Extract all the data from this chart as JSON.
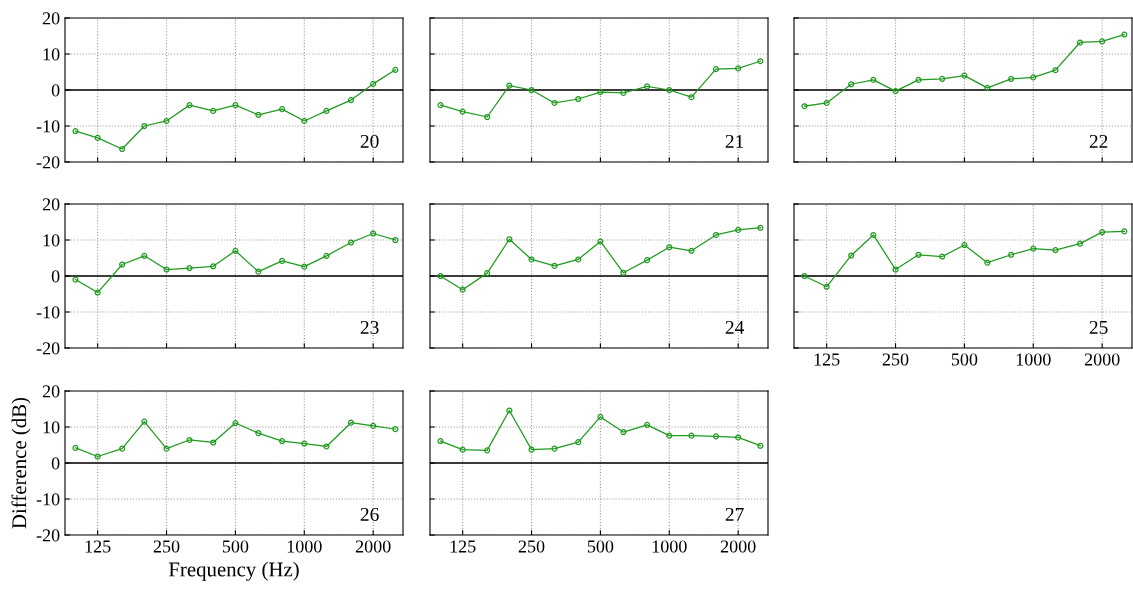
{
  "chart_data": [
    {
      "type": "line",
      "x": [
        100,
        125,
        160,
        200,
        250,
        315,
        400,
        500,
        630,
        800,
        1000,
        1250,
        1600,
        2000,
        2500
      ],
      "series": [
        {
          "color": "#1f9a1f",
          "values": [
            -11.4,
            -13.3,
            -16.4,
            -10,
            -8.6,
            -4.2,
            -5.8,
            -4.2,
            -6.9,
            -5.3,
            -8.6,
            -5.8,
            -2.8,
            1.7,
            5.6
          ]
        }
      ],
      "xlim": [
        90,
        2700
      ],
      "ylim": [
        -20,
        20
      ],
      "xticks": [
        125,
        250,
        500,
        1000,
        2000
      ],
      "yticks": [
        -20,
        -10,
        0,
        10,
        20
      ],
      "log": "x",
      "grid": true,
      "marker": "circle",
      "line_style": "solid",
      "ref_lines": [
        {
          "axis": "y",
          "value": 0,
          "color": "#000000"
        }
      ],
      "annotations": [
        "20"
      ],
      "tick_labels": "y"
    },
    {
      "type": "line",
      "x": [
        100,
        125,
        160,
        200,
        250,
        315,
        400,
        500,
        630,
        800,
        1000,
        1250,
        1600,
        2000,
        2500
      ],
      "series": [
        {
          "color": "#1f9a1f",
          "values": [
            -4.2,
            -6,
            -7.5,
            1.2,
            0,
            -3.6,
            -2.5,
            -0.6,
            -0.8,
            1,
            0,
            -2,
            5.8,
            6,
            8
          ]
        }
      ],
      "xlim": [
        90,
        2700
      ],
      "ylim": [
        -20,
        20
      ],
      "xticks": [
        125,
        250,
        500,
        1000,
        2000
      ],
      "yticks": [
        -20,
        -10,
        0,
        10,
        20
      ],
      "log": "x",
      "grid": true,
      "marker": "circle",
      "line_style": "solid",
      "ref_lines": [
        {
          "axis": "y",
          "value": 0,
          "color": "#000000"
        }
      ],
      "annotations": [
        "21"
      ],
      "tick_labels": false
    },
    {
      "type": "line",
      "x": [
        100,
        125,
        160,
        200,
        250,
        315,
        400,
        500,
        630,
        800,
        1000,
        1250,
        1600,
        2000,
        2500
      ],
      "series": [
        {
          "color": "#1f9a1f",
          "values": [
            -4.5,
            -3.6,
            1.6,
            2.8,
            -0.3,
            2.8,
            3.1,
            4,
            0.6,
            3.1,
            3.5,
            5.5,
            13.2,
            13.5,
            15.4
          ]
        }
      ],
      "xlim": [
        90,
        2700
      ],
      "ylim": [
        -20,
        20
      ],
      "xticks": [
        125,
        250,
        500,
        1000,
        2000
      ],
      "yticks": [
        -20,
        -10,
        0,
        10,
        20
      ],
      "log": "x",
      "grid": true,
      "marker": "circle",
      "line_style": "solid",
      "ref_lines": [
        {
          "axis": "y",
          "value": 0,
          "color": "#000000"
        }
      ],
      "annotations": [
        "22"
      ],
      "tick_labels": false
    },
    {
      "type": "line",
      "x": [
        100,
        125,
        160,
        200,
        250,
        315,
        400,
        500,
        630,
        800,
        1000,
        1250,
        1600,
        2000,
        2500
      ],
      "series": [
        {
          "color": "#1f9a1f",
          "values": [
            -1,
            -4.6,
            3.2,
            5.6,
            1.8,
            2.2,
            2.7,
            7,
            1.2,
            4.2,
            2.6,
            5.6,
            9.3,
            11.8,
            10
          ]
        }
      ],
      "xlim": [
        90,
        2700
      ],
      "ylim": [
        -20,
        20
      ],
      "xticks": [
        125,
        250,
        500,
        1000,
        2000
      ],
      "yticks": [
        -20,
        -10,
        0,
        10,
        20
      ],
      "log": "x",
      "grid": true,
      "marker": "circle",
      "line_style": "solid",
      "ref_lines": [
        {
          "axis": "y",
          "value": 0,
          "color": "#000000"
        }
      ],
      "annotations": [
        "23"
      ],
      "tick_labels": "y"
    },
    {
      "type": "line",
      "x": [
        100,
        125,
        160,
        200,
        250,
        315,
        400,
        500,
        630,
        800,
        1000,
        1250,
        1600,
        2000,
        2500
      ],
      "series": [
        {
          "color": "#1f9a1f",
          "values": [
            0,
            -3.8,
            0.8,
            10.2,
            4.6,
            2.8,
            4.6,
            9.6,
            0.9,
            4.4,
            8,
            7,
            11.4,
            12.8,
            13.4
          ]
        }
      ],
      "xlim": [
        90,
        2700
      ],
      "ylim": [
        -20,
        20
      ],
      "xticks": [
        125,
        250,
        500,
        1000,
        2000
      ],
      "yticks": [
        -20,
        -10,
        0,
        10,
        20
      ],
      "log": "x",
      "grid": true,
      "marker": "circle",
      "line_style": "solid",
      "ref_lines": [
        {
          "axis": "y",
          "value": 0,
          "color": "#000000"
        }
      ],
      "annotations": [
        "24"
      ],
      "tick_labels": false
    },
    {
      "type": "line",
      "x": [
        100,
        125,
        160,
        200,
        250,
        315,
        400,
        500,
        630,
        800,
        1000,
        1250,
        1600,
        2000,
        2500
      ],
      "series": [
        {
          "color": "#1f9a1f",
          "values": [
            0,
            -3,
            5.7,
            11.4,
            1.8,
            5.9,
            5.4,
            8.6,
            3.7,
            5.9,
            7.6,
            7.2,
            9,
            12.2,
            12.4
          ]
        }
      ],
      "xlim": [
        90,
        2700
      ],
      "ylim": [
        -20,
        20
      ],
      "xticks": [
        125,
        250,
        500,
        1000,
        2000
      ],
      "yticks": [
        -20,
        -10,
        0,
        10,
        20
      ],
      "log": "x",
      "grid": true,
      "marker": "circle",
      "line_style": "solid",
      "ref_lines": [
        {
          "axis": "y",
          "value": 0,
          "color": "#000000"
        }
      ],
      "annotations": [
        "25"
      ],
      "tick_labels": "x"
    },
    {
      "type": "line",
      "x": [
        100,
        125,
        160,
        200,
        250,
        315,
        400,
        500,
        630,
        800,
        1000,
        1250,
        1600,
        2000,
        2500
      ],
      "series": [
        {
          "color": "#1f9a1f",
          "values": [
            4.2,
            1.8,
            4,
            11.5,
            4,
            6.4,
            5.7,
            11.1,
            8.3,
            6.1,
            5.4,
            4.6,
            11.2,
            10.3,
            9.4
          ]
        }
      ],
      "xlim": [
        90,
        2700
      ],
      "ylim": [
        -20,
        20
      ],
      "xticks": [
        125,
        250,
        500,
        1000,
        2000
      ],
      "yticks": [
        -20,
        -10,
        0,
        10,
        20
      ],
      "log": "x",
      "grid": true,
      "marker": "circle",
      "line_style": "solid",
      "ref_lines": [
        {
          "axis": "y",
          "value": 0,
          "color": "#000000"
        }
      ],
      "annotations": [
        "26"
      ],
      "xlabel": "Frequency (Hz)",
      "ylabel": "Difference (dB)"
    },
    {
      "type": "line",
      "x": [
        100,
        125,
        160,
        200,
        250,
        315,
        400,
        500,
        630,
        800,
        1000,
        1250,
        1600,
        2000,
        2500
      ],
      "series": [
        {
          "color": "#1f9a1f",
          "values": [
            6.1,
            3.7,
            3.5,
            14.6,
            3.7,
            4,
            5.8,
            12.8,
            8.6,
            10.6,
            7.6,
            7.6,
            7.4,
            7.1,
            4.8
          ]
        }
      ],
      "xlim": [
        90,
        2700
      ],
      "ylim": [
        -20,
        20
      ],
      "xticks": [
        125,
        250,
        500,
        1000,
        2000
      ],
      "yticks": [
        -20,
        -10,
        0,
        10,
        20
      ],
      "log": "x",
      "grid": true,
      "marker": "circle",
      "line_style": "solid",
      "ref_lines": [
        {
          "axis": "y",
          "value": 0,
          "color": "#000000"
        }
      ],
      "annotations": [
        "27"
      ],
      "tick_labels": "x"
    }
  ]
}
